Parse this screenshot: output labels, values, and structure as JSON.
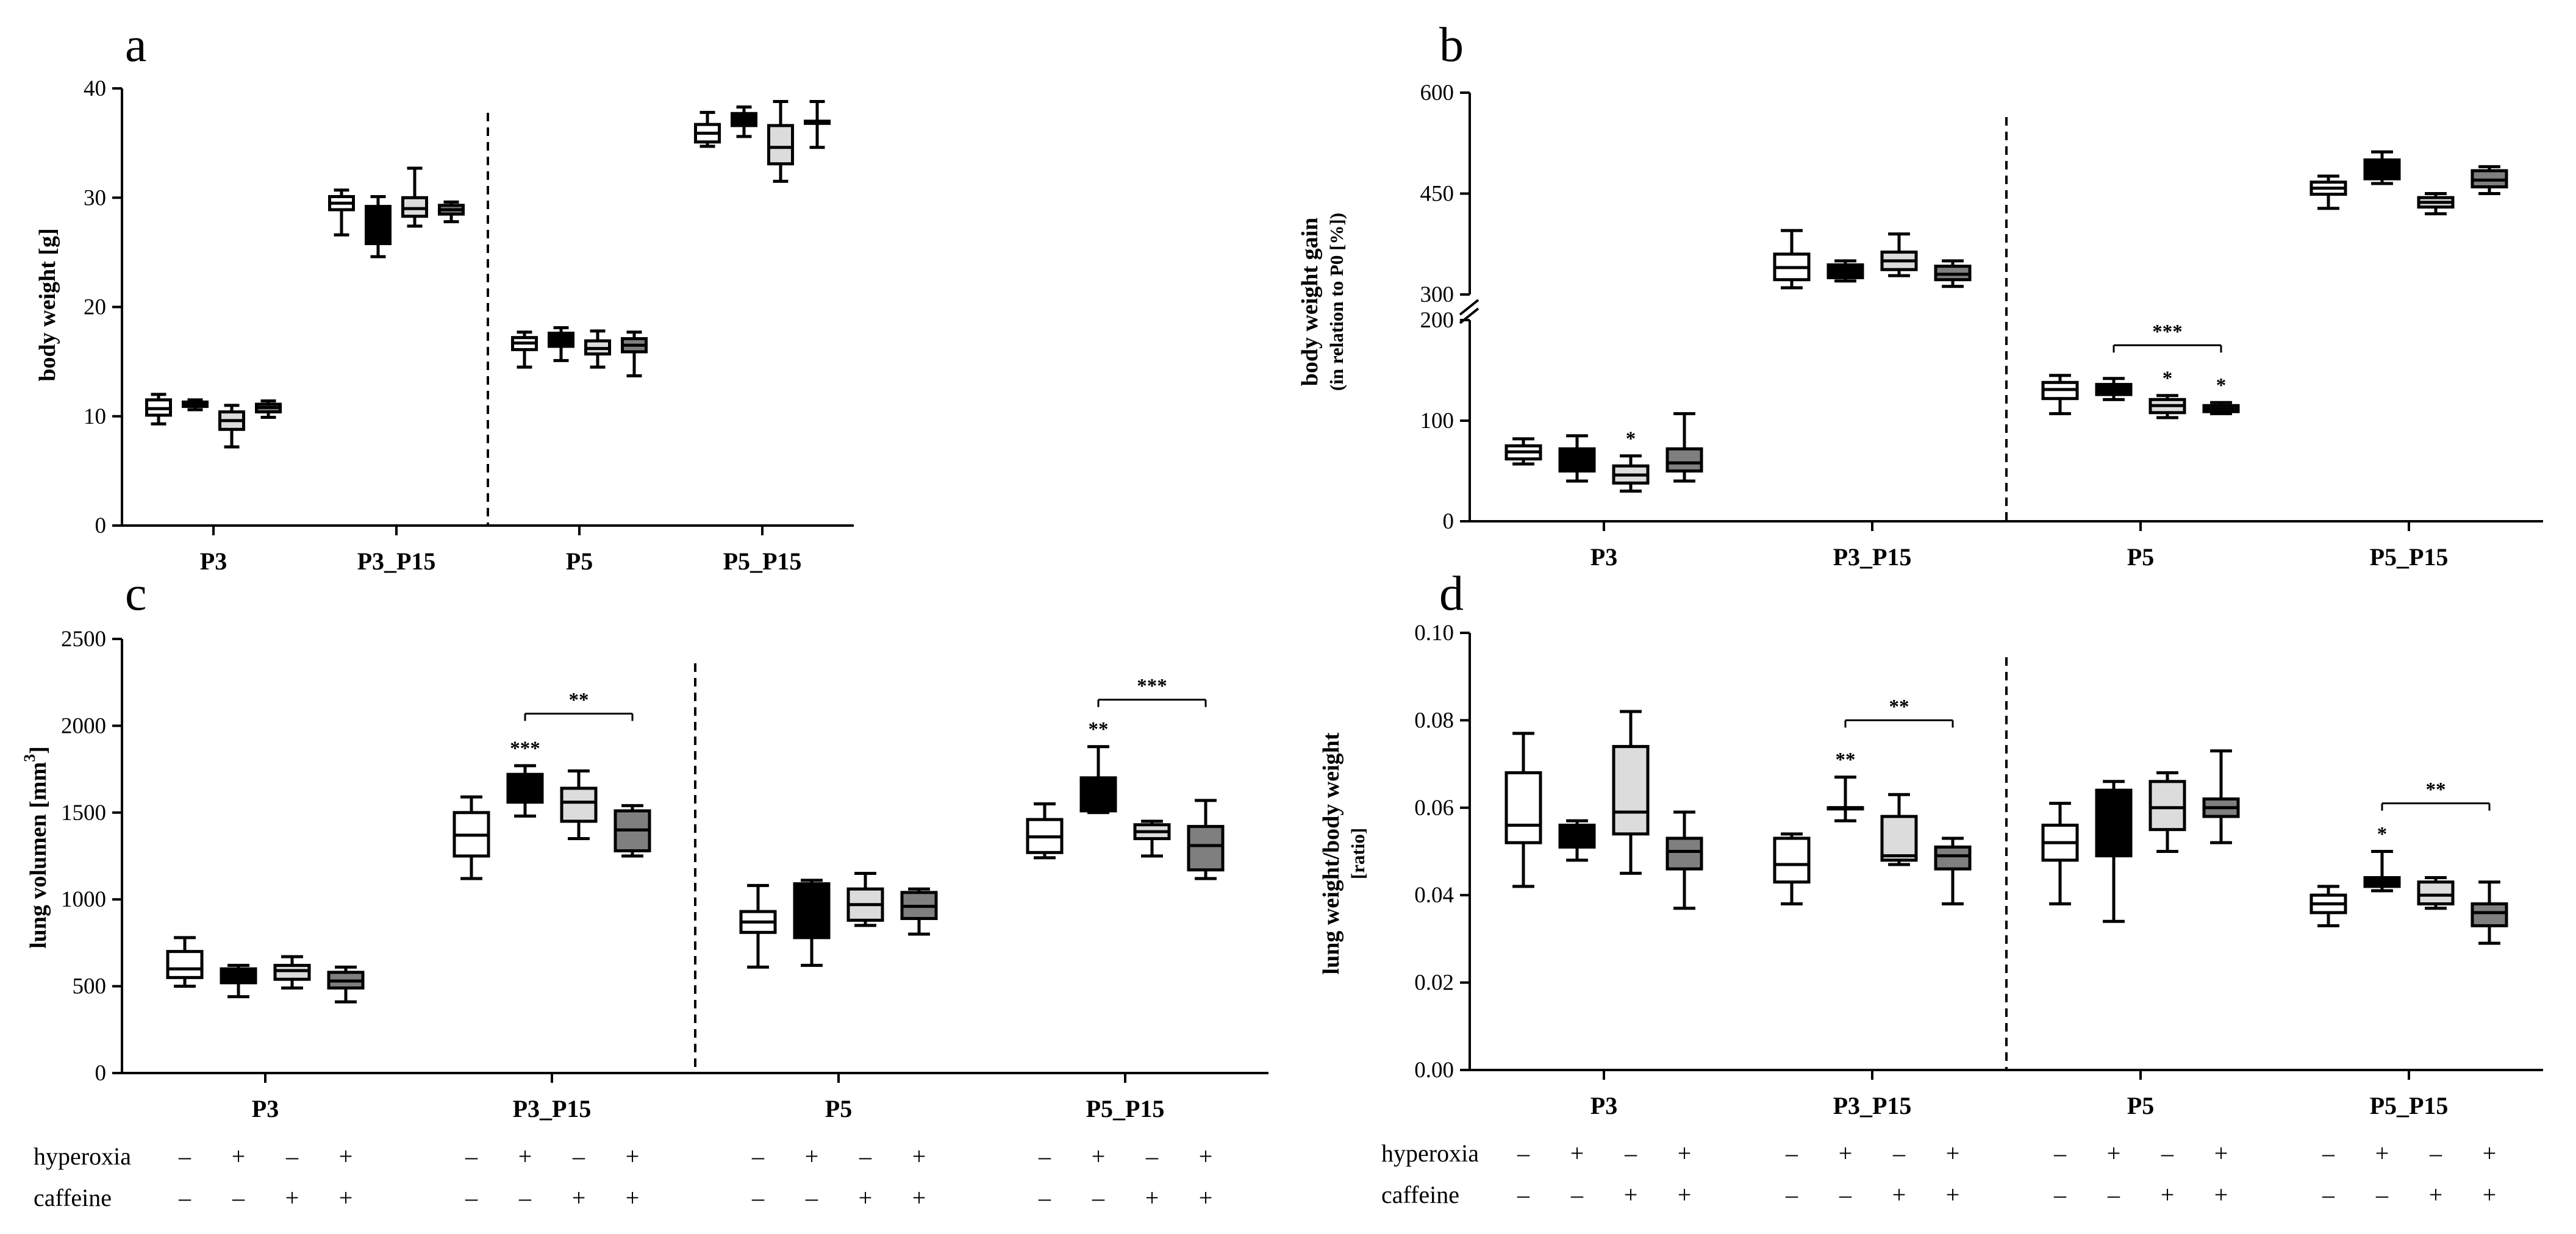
{
  "figure": {
    "condition_labels": {
      "hyperoxia": "hyperoxia",
      "caffeine": "caffeine"
    },
    "hyperoxia_signs": [
      "–",
      "+",
      "–",
      "+"
    ],
    "caffeine_signs": [
      "–",
      "–",
      "+",
      "+"
    ]
  },
  "colors": {
    "room_air": "#ffffff",
    "hyperoxia": "#000000",
    "caffeine": "#dcdcdc",
    "hyperoxia_caffeine": "#7f7f7f",
    "stroke": "#000000"
  },
  "chart_data": [
    {
      "panel": "a",
      "type": "box",
      "ylabel": "body weight [g]",
      "ylim": [
        0,
        40
      ],
      "yticks": [
        "0",
        "10",
        "20",
        "30",
        "40"
      ],
      "categories": [
        "P3",
        "P3_P15",
        "P5",
        "P5_P15"
      ],
      "groups": [
        "–/–",
        "+/–",
        "–/+",
        "+/+"
      ],
      "boxes": [
        [
          [
            9.3,
            10.1,
            10.7,
            11.5,
            12.0
          ],
          [
            10.6,
            10.9,
            11.1,
            11.3,
            11.5
          ],
          [
            7.2,
            8.8,
            9.6,
            10.4,
            11.0
          ],
          [
            9.9,
            10.4,
            10.8,
            11.1,
            11.4
          ]
        ],
        [
          [
            26.6,
            28.9,
            29.5,
            30.1,
            30.7
          ],
          [
            24.6,
            25.8,
            27.8,
            29.2,
            30.1
          ],
          [
            27.4,
            28.3,
            29.0,
            30.0,
            32.7
          ],
          [
            27.8,
            28.5,
            28.9,
            29.3,
            29.6
          ]
        ],
        [
          [
            14.5,
            16.1,
            16.7,
            17.2,
            17.7
          ],
          [
            15.1,
            16.4,
            17.0,
            17.6,
            18.1
          ],
          [
            14.5,
            15.7,
            16.2,
            16.9,
            17.8
          ],
          [
            13.7,
            15.9,
            16.5,
            17.1,
            17.7
          ]
        ],
        [
          [
            34.7,
            35.1,
            35.9,
            36.7,
            37.8
          ],
          [
            35.6,
            36.6,
            37.2,
            37.7,
            38.3
          ],
          [
            31.5,
            33.1,
            34.6,
            36.6,
            38.8
          ],
          [
            34.6,
            36.8,
            36.9,
            37.0,
            38.8
          ]
        ]
      ],
      "annotations": []
    },
    {
      "panel": "b",
      "type": "box",
      "ylabel": "body weight gain",
      "ylabel_sub": "(in relation to P0 [%])",
      "axis_break": [
        200,
        300
      ],
      "ylim": [
        0,
        600
      ],
      "yticks_lower": [
        "0",
        "100",
        "200"
      ],
      "yticks_upper": [
        "300",
        "450",
        "600"
      ],
      "categories": [
        "P3",
        "P3_P15",
        "P5",
        "P5_P15"
      ],
      "groups": [
        "–/–",
        "+/–",
        "–/+",
        "+/+"
      ],
      "boxes": [
        [
          [
            57,
            62,
            69,
            75,
            82
          ],
          [
            40,
            50,
            62,
            72,
            85
          ],
          [
            30,
            38,
            46,
            55,
            65
          ],
          [
            40,
            50,
            58,
            72,
            107
          ]
        ],
        [
          [
            310,
            322,
            340,
            360,
            395
          ],
          [
            320,
            325,
            334,
            344,
            350
          ],
          [
            328,
            337,
            350,
            363,
            390
          ],
          [
            312,
            322,
            330,
            342,
            350
          ]
        ],
        [
          [
            107,
            122,
            131,
            138,
            145
          ],
          [
            121,
            126,
            131,
            136,
            142
          ],
          [
            103,
            108,
            115,
            121,
            125
          ],
          [
            107,
            109,
            112,
            115,
            118
          ]
        ],
        [
          [
            428,
            449,
            458,
            467,
            476
          ],
          [
            465,
            472,
            488,
            500,
            512
          ],
          [
            420,
            430,
            437,
            444,
            450
          ],
          [
            450,
            460,
            470,
            484,
            490
          ]
        ]
      ],
      "annotations": [
        {
          "cat": 0,
          "group": 2,
          "text": "*"
        },
        {
          "cat": 2,
          "group": 2,
          "text": "*"
        },
        {
          "cat": 2,
          "group": 3,
          "text": "*"
        },
        {
          "cat": 2,
          "from": 1,
          "to": 3,
          "text": "***",
          "value": 175
        }
      ]
    },
    {
      "panel": "c",
      "type": "box",
      "ylabel": "lung volumen [mm",
      "ylabel_sup": "3",
      "ylabel_end": "]",
      "ylim": [
        0,
        2500
      ],
      "yticks": [
        "0",
        "500",
        "1000",
        "1500",
        "2000",
        "2500"
      ],
      "categories": [
        "P3",
        "P3_P15",
        "P5",
        "P5_P15"
      ],
      "groups": [
        "–/–",
        "+/–",
        "–/+",
        "+/+"
      ],
      "boxes": [
        [
          [
            500,
            550,
            600,
            700,
            780
          ],
          [
            440,
            520,
            560,
            600,
            620
          ],
          [
            490,
            540,
            590,
            620,
            670
          ],
          [
            410,
            490,
            530,
            580,
            610
          ]
        ],
        [
          [
            1120,
            1250,
            1370,
            1500,
            1590
          ],
          [
            1480,
            1560,
            1620,
            1720,
            1770
          ],
          [
            1350,
            1450,
            1560,
            1640,
            1740
          ],
          [
            1250,
            1280,
            1400,
            1510,
            1540
          ]
        ],
        [
          [
            610,
            810,
            870,
            930,
            1080
          ],
          [
            620,
            780,
            940,
            1090,
            1110
          ],
          [
            850,
            880,
            970,
            1060,
            1150
          ],
          [
            800,
            890,
            960,
            1040,
            1060
          ]
        ],
        [
          [
            1240,
            1270,
            1360,
            1460,
            1550
          ],
          [
            1500,
            1510,
            1560,
            1700,
            1880
          ],
          [
            1250,
            1350,
            1390,
            1430,
            1450
          ],
          [
            1120,
            1170,
            1310,
            1420,
            1570
          ]
        ]
      ],
      "annotations": [
        {
          "cat": 1,
          "group": 1,
          "text": "***"
        },
        {
          "cat": 3,
          "group": 1,
          "text": "**"
        },
        {
          "cat": 1,
          "from": 1,
          "to": 3,
          "text": "**",
          "value": 2070
        },
        {
          "cat": 3,
          "from": 1,
          "to": 3,
          "text": "***",
          "value": 2150
        }
      ]
    },
    {
      "panel": "d",
      "type": "box",
      "ylabel": "lung weight/body weight",
      "ylabel_sub": "[ratio]",
      "ylim": [
        0,
        0.1
      ],
      "yticks": [
        "0.00",
        "0.02",
        "0.04",
        "0.06",
        "0.08",
        "0.10"
      ],
      "categories": [
        "P3",
        "P3_P15",
        "P5",
        "P5_P15"
      ],
      "groups": [
        "–/–",
        "+/–",
        "–/+",
        "+/+"
      ],
      "boxes": [
        [
          [
            0.042,
            0.052,
            0.056,
            0.068,
            0.077
          ],
          [
            0.048,
            0.051,
            0.054,
            0.056,
            0.057
          ],
          [
            0.045,
            0.054,
            0.059,
            0.074,
            0.082
          ],
          [
            0.037,
            0.046,
            0.05,
            0.053,
            0.059
          ]
        ],
        [
          [
            0.038,
            0.043,
            0.047,
            0.053,
            0.054
          ],
          [
            0.057,
            0.06,
            0.06,
            0.06,
            0.067
          ],
          [
            0.047,
            0.048,
            0.049,
            0.058,
            0.063
          ],
          [
            0.038,
            0.046,
            0.049,
            0.051,
            0.053
          ]
        ],
        [
          [
            0.038,
            0.048,
            0.052,
            0.056,
            0.061
          ],
          [
            0.034,
            0.049,
            0.063,
            0.064,
            0.066
          ],
          [
            0.05,
            0.055,
            0.06,
            0.066,
            0.068
          ],
          [
            0.052,
            0.058,
            0.06,
            0.062,
            0.073
          ]
        ],
        [
          [
            0.033,
            0.036,
            0.038,
            0.04,
            0.042
          ],
          [
            0.041,
            0.042,
            0.043,
            0.044,
            0.05
          ],
          [
            0.037,
            0.038,
            0.04,
            0.043,
            0.044
          ],
          [
            0.029,
            0.033,
            0.036,
            0.038,
            0.043
          ]
        ]
      ],
      "annotations": [
        {
          "cat": 1,
          "group": 1,
          "text": "**"
        },
        {
          "cat": 3,
          "group": 1,
          "text": "*"
        },
        {
          "cat": 1,
          "from": 1,
          "to": 3,
          "text": "**",
          "value": 0.08
        },
        {
          "cat": 3,
          "from": 1,
          "to": 3,
          "text": "**",
          "value": 0.061
        }
      ]
    }
  ]
}
